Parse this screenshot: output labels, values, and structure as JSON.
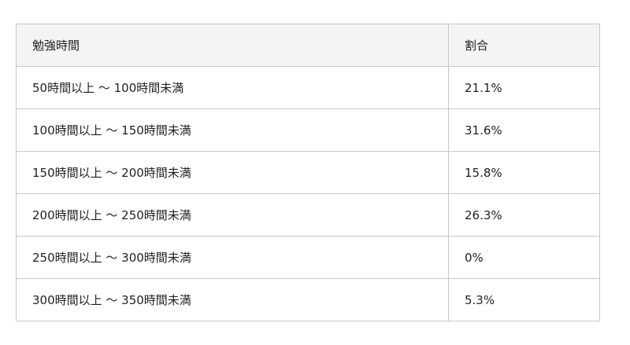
{
  "table": {
    "headers": [
      "勉強時間",
      "割合"
    ],
    "rows": [
      [
        "50時間以上 〜 100時間未満",
        "21.1%"
      ],
      [
        "100時間以上 〜 150時間未満",
        "31.6%"
      ],
      [
        "150時間以上 〜 200時間未満",
        "15.8%"
      ],
      [
        "200時間以上 〜 250時間未満",
        "26.3%"
      ],
      [
        "250時間以上 〜 300時間未満",
        "0%"
      ],
      [
        "300時間以上 〜 350時間未満",
        "5.3%"
      ]
    ]
  }
}
